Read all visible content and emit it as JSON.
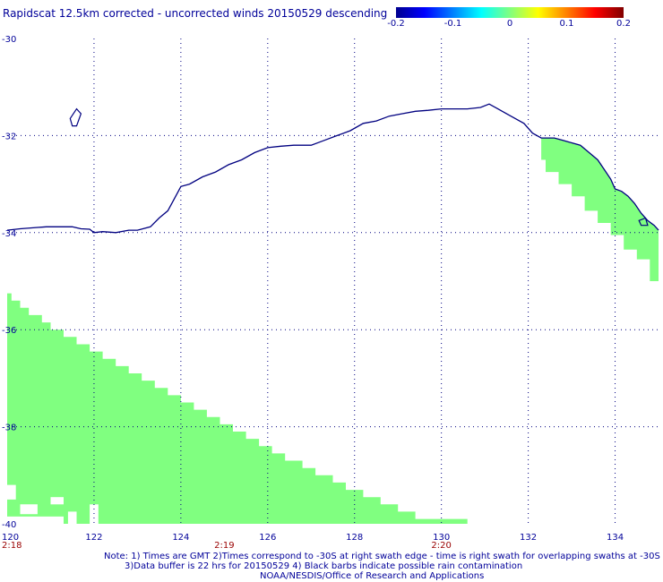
{
  "title": "Rapidscat 12.5km corrected - uncorrected winds 20150529 descending",
  "colorbar": {
    "min": -0.2,
    "max": 0.2,
    "colors": [
      "#00008f",
      "#0000ff",
      "#0080ff",
      "#00ffff",
      "#80ff80",
      "#ffff00",
      "#ff8000",
      "#ff0000",
      "#800000"
    ],
    "ticks": [
      {
        "value": -0.2,
        "label": "-0.2"
      },
      {
        "value": -0.1,
        "label": "-0.1"
      },
      {
        "value": 0,
        "label": "0"
      },
      {
        "value": 0.1,
        "label": "0.1"
      },
      {
        "value": 0.2,
        "label": "0.2"
      }
    ]
  },
  "map": {
    "lon_range": [
      120,
      135
    ],
    "lat_range": [
      -40,
      -30
    ],
    "lon_ticks": [
      {
        "value": 120,
        "label": "120"
      },
      {
        "value": 122,
        "label": "122"
      },
      {
        "value": 124,
        "label": "124"
      },
      {
        "value": 126,
        "label": "126"
      },
      {
        "value": 128,
        "label": "128"
      },
      {
        "value": 130,
        "label": "130"
      },
      {
        "value": 132,
        "label": "132"
      },
      {
        "value": 134,
        "label": "134"
      }
    ],
    "lat_ticks": [
      {
        "value": -30,
        "label": "-30"
      },
      {
        "value": -32,
        "label": "-32"
      },
      {
        "value": -34,
        "label": "-34"
      },
      {
        "value": -36,
        "label": "-36"
      },
      {
        "value": -38,
        "label": "-38"
      },
      {
        "value": -40,
        "label": "-40"
      }
    ],
    "time_labels": [
      {
        "lon": 120,
        "label": "2:18"
      },
      {
        "lon": 125,
        "label": "2:19"
      },
      {
        "lon": 130,
        "label": "2:20"
      }
    ],
    "coast_color": "#000080",
    "swath_color": "#80ff80",
    "grid_color": "#000080",
    "coastline": [
      [
        120.0,
        -33.95
      ],
      [
        120.3,
        -33.92
      ],
      [
        120.6,
        -33.9
      ],
      [
        120.9,
        -33.88
      ],
      [
        121.2,
        -33.88
      ],
      [
        121.5,
        -33.88
      ],
      [
        121.7,
        -33.92
      ],
      [
        121.9,
        -33.93
      ],
      [
        122.0,
        -34.0
      ],
      [
        122.2,
        -33.98
      ],
      [
        122.5,
        -34.0
      ],
      [
        122.8,
        -33.95
      ],
      [
        123.0,
        -33.95
      ],
      [
        123.3,
        -33.88
      ],
      [
        123.5,
        -33.7
      ],
      [
        123.7,
        -33.55
      ],
      [
        123.85,
        -33.3
      ],
      [
        124.0,
        -33.05
      ],
      [
        124.2,
        -33.0
      ],
      [
        124.5,
        -32.85
      ],
      [
        124.8,
        -32.75
      ],
      [
        125.1,
        -32.6
      ],
      [
        125.4,
        -32.5
      ],
      [
        125.7,
        -32.35
      ],
      [
        126.0,
        -32.25
      ],
      [
        126.3,
        -32.22
      ],
      [
        126.6,
        -32.2
      ],
      [
        127.0,
        -32.2
      ],
      [
        127.3,
        -32.1
      ],
      [
        127.6,
        -32.0
      ],
      [
        127.9,
        -31.9
      ],
      [
        128.2,
        -31.75
      ],
      [
        128.5,
        -31.7
      ],
      [
        128.8,
        -31.6
      ],
      [
        129.1,
        -31.55
      ],
      [
        129.4,
        -31.5
      ],
      [
        129.7,
        -31.48
      ],
      [
        130.0,
        -31.45
      ],
      [
        130.3,
        -31.45
      ],
      [
        130.6,
        -31.45
      ],
      [
        130.9,
        -31.42
      ],
      [
        131.1,
        -31.35
      ],
      [
        131.3,
        -31.45
      ],
      [
        131.6,
        -31.6
      ],
      [
        131.9,
        -31.75
      ],
      [
        132.1,
        -31.95
      ],
      [
        132.3,
        -32.05
      ],
      [
        132.6,
        -32.05
      ],
      [
        132.8,
        -32.1
      ],
      [
        133.0,
        -32.15
      ],
      [
        133.2,
        -32.2
      ],
      [
        133.4,
        -32.35
      ],
      [
        133.6,
        -32.5
      ],
      [
        133.75,
        -32.7
      ],
      [
        133.9,
        -32.9
      ],
      [
        134.0,
        -33.1
      ],
      [
        134.15,
        -33.15
      ],
      [
        134.3,
        -33.25
      ],
      [
        134.45,
        -33.4
      ],
      [
        134.6,
        -33.6
      ],
      [
        134.75,
        -33.75
      ],
      [
        134.9,
        -33.85
      ],
      [
        135.0,
        -33.95
      ]
    ],
    "islands": [
      [
        [
          121.45,
          -31.65
        ],
        [
          121.6,
          -31.45
        ],
        [
          121.7,
          -31.55
        ],
        [
          121.6,
          -31.8
        ],
        [
          121.5,
          -31.8
        ],
        [
          121.45,
          -31.65
        ]
      ],
      [
        [
          134.55,
          -33.75
        ],
        [
          134.7,
          -33.7
        ],
        [
          134.75,
          -33.85
        ],
        [
          134.6,
          -33.85
        ],
        [
          134.55,
          -33.75
        ]
      ]
    ],
    "swaths": [
      [
        [
          120.0,
          -40.0
        ],
        [
          120.0,
          -35.25
        ],
        [
          120.1,
          -35.25
        ],
        [
          120.1,
          -35.4
        ],
        [
          120.3,
          -35.4
        ],
        [
          120.3,
          -35.55
        ],
        [
          120.5,
          -35.55
        ],
        [
          120.5,
          -35.7
        ],
        [
          120.8,
          -35.7
        ],
        [
          120.8,
          -35.85
        ],
        [
          121.0,
          -35.85
        ],
        [
          121.0,
          -36.0
        ],
        [
          121.3,
          -36.0
        ],
        [
          121.3,
          -36.15
        ],
        [
          121.6,
          -36.15
        ],
        [
          121.6,
          -36.3
        ],
        [
          121.9,
          -36.3
        ],
        [
          121.9,
          -36.45
        ],
        [
          122.2,
          -36.45
        ],
        [
          122.2,
          -36.6
        ],
        [
          122.5,
          -36.6
        ],
        [
          122.5,
          -36.75
        ],
        [
          122.8,
          -36.75
        ],
        [
          122.8,
          -36.9
        ],
        [
          123.1,
          -36.9
        ],
        [
          123.1,
          -37.05
        ],
        [
          123.4,
          -37.05
        ],
        [
          123.4,
          -37.2
        ],
        [
          123.7,
          -37.2
        ],
        [
          123.7,
          -37.35
        ],
        [
          124.0,
          -37.35
        ],
        [
          124.0,
          -37.5
        ],
        [
          124.3,
          -37.5
        ],
        [
          124.3,
          -37.65
        ],
        [
          124.6,
          -37.65
        ],
        [
          124.6,
          -37.8
        ],
        [
          124.9,
          -37.8
        ],
        [
          124.9,
          -37.95
        ],
        [
          125.2,
          -37.95
        ],
        [
          125.2,
          -38.1
        ],
        [
          125.5,
          -38.1
        ],
        [
          125.5,
          -38.25
        ],
        [
          125.8,
          -38.25
        ],
        [
          125.8,
          -38.4
        ],
        [
          126.1,
          -38.4
        ],
        [
          126.1,
          -38.55
        ],
        [
          126.4,
          -38.55
        ],
        [
          126.4,
          -38.7
        ],
        [
          126.8,
          -38.7
        ],
        [
          126.8,
          -38.85
        ],
        [
          127.1,
          -38.85
        ],
        [
          127.1,
          -39.0
        ],
        [
          127.5,
          -39.0
        ],
        [
          127.5,
          -39.15
        ],
        [
          127.8,
          -39.15
        ],
        [
          127.8,
          -39.3
        ],
        [
          128.2,
          -39.3
        ],
        [
          128.2,
          -39.45
        ],
        [
          128.6,
          -39.45
        ],
        [
          128.6,
          -39.6
        ],
        [
          129.0,
          -39.6
        ],
        [
          129.0,
          -39.75
        ],
        [
          129.4,
          -39.75
        ],
        [
          129.4,
          -39.9
        ],
        [
          130.6,
          -39.9
        ],
        [
          130.6,
          -40.0
        ]
      ],
      [
        [
          132.3,
          -32.05
        ],
        [
          132.6,
          -32.05
        ],
        [
          132.8,
          -32.1
        ],
        [
          133.0,
          -32.15
        ],
        [
          133.2,
          -32.2
        ],
        [
          133.4,
          -32.35
        ],
        [
          133.6,
          -32.5
        ],
        [
          133.75,
          -32.7
        ],
        [
          133.9,
          -32.9
        ],
        [
          134.0,
          -33.1
        ],
        [
          134.15,
          -33.15
        ],
        [
          134.3,
          -33.25
        ],
        [
          134.45,
          -33.4
        ],
        [
          134.6,
          -33.6
        ],
        [
          134.75,
          -33.75
        ],
        [
          134.9,
          -33.85
        ],
        [
          135.0,
          -33.95
        ],
        [
          135.0,
          -35.0
        ],
        [
          134.8,
          -35.0
        ],
        [
          134.8,
          -34.55
        ],
        [
          134.5,
          -34.55
        ],
        [
          134.5,
          -34.35
        ],
        [
          134.2,
          -34.35
        ],
        [
          134.2,
          -34.05
        ],
        [
          133.9,
          -34.05
        ],
        [
          133.9,
          -33.8
        ],
        [
          133.6,
          -33.8
        ],
        [
          133.6,
          -33.55
        ],
        [
          133.3,
          -33.55
        ],
        [
          133.3,
          -33.25
        ],
        [
          133.0,
          -33.25
        ],
        [
          133.0,
          -33.0
        ],
        [
          132.7,
          -33.0
        ],
        [
          132.7,
          -32.75
        ],
        [
          132.4,
          -32.75
        ],
        [
          132.4,
          -32.5
        ],
        [
          132.3,
          -32.5
        ]
      ]
    ],
    "gaps": [
      [
        [
          120.0,
          -39.2
        ],
        [
          120.2,
          -39.2
        ],
        [
          120.2,
          -39.5
        ],
        [
          120.0,
          -39.5
        ]
      ],
      [
        [
          120.3,
          -39.6
        ],
        [
          120.7,
          -39.6
        ],
        [
          120.7,
          -39.8
        ],
        [
          120.3,
          -39.8
        ]
      ],
      [
        [
          120.0,
          -39.85
        ],
        [
          121.3,
          -39.85
        ],
        [
          121.3,
          -40.0
        ],
        [
          120.0,
          -40.0
        ]
      ],
      [
        [
          121.4,
          -39.75
        ],
        [
          121.6,
          -39.75
        ],
        [
          121.6,
          -40.0
        ],
        [
          121.4,
          -40.0
        ]
      ],
      [
        [
          121.9,
          -39.6
        ],
        [
          122.1,
          -39.6
        ],
        [
          122.1,
          -40.0
        ],
        [
          121.9,
          -40.0
        ]
      ],
      [
        [
          121.0,
          -39.45
        ],
        [
          121.3,
          -39.45
        ],
        [
          121.3,
          -39.6
        ],
        [
          121.0,
          -39.6
        ]
      ]
    ]
  },
  "notes": {
    "line1": "Note: 1) Times are GMT 2)Times correspond to -30S at right swath edge - time is right swath for overlapping swaths at -30S",
    "line2": "3)Data buffer is 22 hrs for 20150529 4) Black barbs indicate possible rain contamination",
    "line3": "NOAA/NESDIS/Office of Research and Applications"
  }
}
